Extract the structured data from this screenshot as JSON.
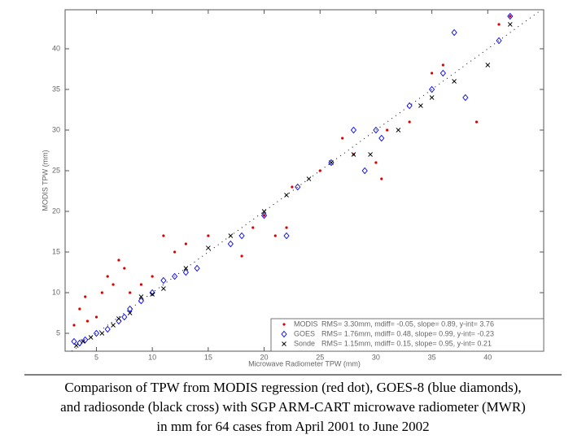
{
  "chart_data": {
    "type": "scatter",
    "x_label": "Microwave Radiometer TPW (mm)",
    "y_label": "MODIS TPW (mm)",
    "xlim": [
      2.2,
      45
    ],
    "ylim": [
      2.8,
      44.8
    ],
    "xticks": [
      5,
      10,
      15,
      20,
      25,
      30,
      35,
      40
    ],
    "yticks": [
      5,
      10,
      15,
      20,
      25,
      30,
      35,
      40
    ],
    "legend": "lower right",
    "series": [
      {
        "name": "MODIS",
        "marker": "dot",
        "color": "#dd0000",
        "stats": "RMS= 3.30mm, mdiff= -0.05, slope= 0.89, y-int= 3.76",
        "x": [
          3,
          3.5,
          4,
          4.2,
          5,
          5.5,
          6,
          6.5,
          7,
          7.5,
          8,
          9,
          10,
          11,
          12,
          13,
          15,
          18,
          19,
          20,
          21,
          22,
          22.5,
          25,
          27,
          28,
          30,
          30.5,
          31,
          33,
          35,
          36,
          39,
          41,
          42
        ],
        "values": [
          6,
          8,
          9.5,
          6.5,
          7,
          10,
          12,
          11,
          14,
          13,
          10,
          11,
          12,
          17,
          15,
          16,
          17,
          14.5,
          18,
          19.5,
          17,
          18,
          23,
          25,
          29,
          27,
          26,
          24,
          30,
          31,
          37,
          38,
          31,
          43,
          44
        ]
      },
      {
        "name": "GOES",
        "marker": "diamond",
        "color": "#0000ee",
        "stats": "RMS= 1.76mm, mdiff= 0.48, slope= 0.99, y-int= -0.23",
        "x": [
          3,
          3.5,
          4,
          5,
          6,
          7,
          7.5,
          8,
          9,
          10,
          11,
          12,
          13,
          14,
          17,
          18,
          20,
          22,
          23,
          26,
          28,
          29,
          30,
          30.5,
          33,
          35,
          36,
          37,
          38,
          41,
          42
        ],
        "values": [
          4,
          3.8,
          4.2,
          5,
          5.5,
          6.5,
          7,
          8,
          9,
          10,
          11.5,
          12,
          12.5,
          13,
          16,
          17,
          19.5,
          17,
          23,
          26,
          30,
          25,
          30,
          29,
          33,
          35,
          37,
          42,
          34,
          41,
          44
        ]
      },
      {
        "name": "Sonde",
        "marker": "cross",
        "color": "#000000",
        "stats": "RMS= 1.15mm, mdiff= 0.15, slope= 0.95, y-int= 0.21",
        "x": [
          3.2,
          3.8,
          4.5,
          5.5,
          6.5,
          7,
          8,
          9,
          10,
          11,
          13,
          15,
          17,
          20,
          22,
          24,
          26,
          28,
          29.5,
          32,
          34,
          35,
          37,
          40,
          42
        ],
        "values": [
          3.5,
          4,
          4.5,
          5,
          6,
          6.8,
          7.5,
          9.5,
          9.8,
          10.5,
          13,
          15.5,
          17,
          20,
          22,
          24,
          26,
          27,
          27,
          30,
          33,
          34,
          36,
          38,
          43
        ]
      }
    ]
  },
  "caption": [
    "Comparison of TPW from MODIS regression (red dot), GOES-8 (blue diamonds),",
    "and radiosonde (black cross) with SGP ARM-CART microwave radiometer (MWR)",
    "in mm for 64 cases from April 2001 to June 2002"
  ]
}
